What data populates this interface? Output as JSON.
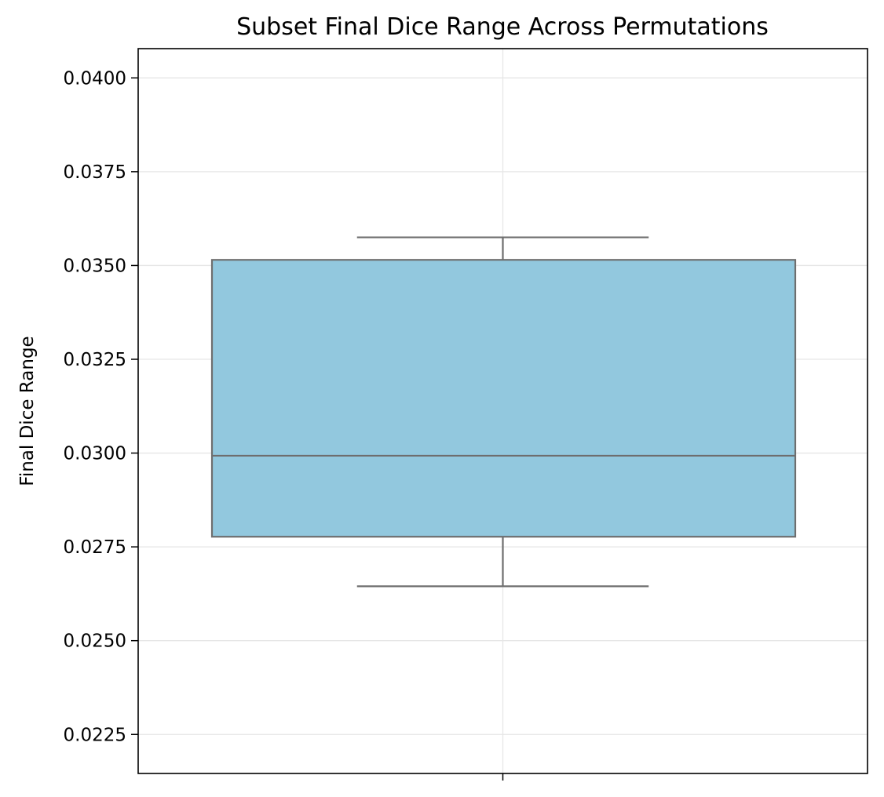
{
  "chart_data": {
    "type": "box",
    "title": "Subset Final Dice Range Across Permutations",
    "xlabel": "",
    "ylabel": "Final Dice Range",
    "ylim": [
      0.02146,
      0.04078
    ],
    "yticks": [
      0.0225,
      0.025,
      0.0275,
      0.03,
      0.0325,
      0.035,
      0.0375,
      0.04
    ],
    "ytick_labels": [
      "0.0225",
      "0.0250",
      "0.0275",
      "0.0300",
      "0.0325",
      "0.0350",
      "0.0375",
      "0.0400"
    ],
    "grid": true,
    "legend": "none",
    "box": {
      "whisker_low": 0.02645,
      "q1": 0.02777,
      "median": 0.02993,
      "q3": 0.03515,
      "whisker_high": 0.03575
    },
    "colors": {
      "box_fill": "#92c8de",
      "box_edge": "#6e6e6e",
      "grid": "#e6e6e6",
      "axis": "#000000"
    }
  }
}
